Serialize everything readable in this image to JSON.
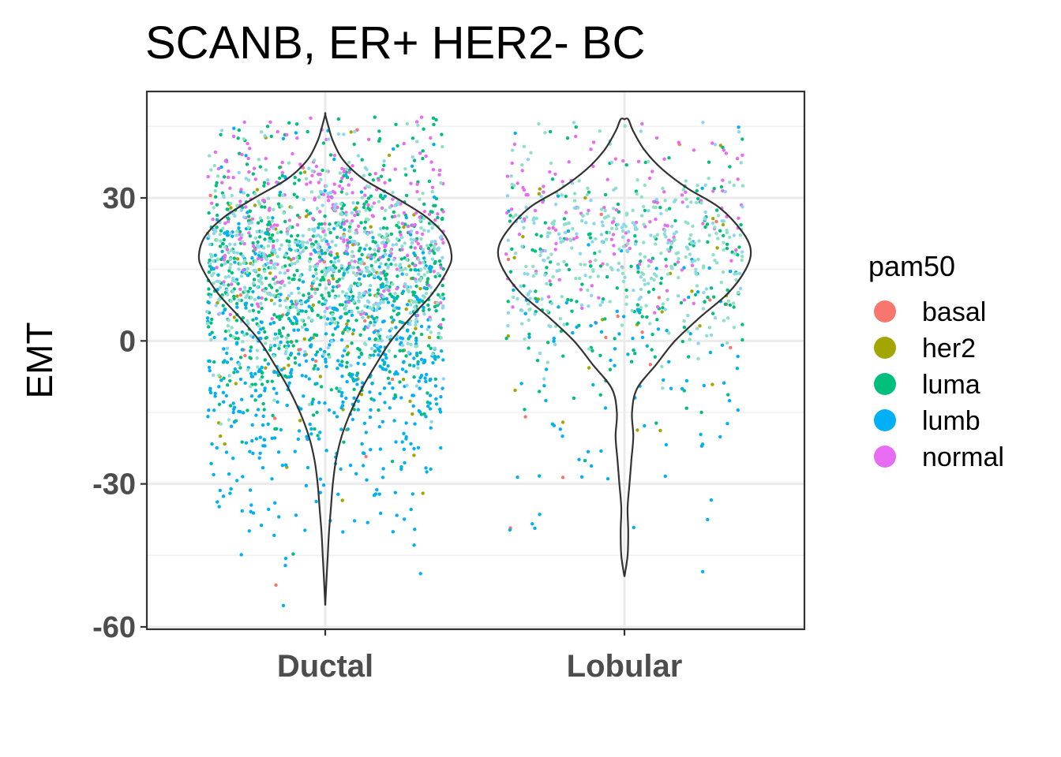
{
  "chart_data": {
    "type": "violin",
    "title": "SCANB, ER+ HER2- BC",
    "xlabel": "",
    "ylabel": "EMT",
    "categories": [
      "Ductal",
      "Lobular"
    ],
    "ylim": [
      -60,
      48
    ],
    "yticks": [
      -60,
      -30,
      0,
      30
    ],
    "grid": true,
    "legend": {
      "title": "pam50",
      "position": "right",
      "entries": [
        {
          "name": "basal",
          "color": "#F8766D"
        },
        {
          "name": "her2",
          "color": "#A3A500"
        },
        {
          "name": "luma",
          "color": "#00BF7D"
        },
        {
          "name": "lumb",
          "color": "#00B0F6"
        },
        {
          "name": "normal",
          "color": "#E76BF3"
        }
      ]
    },
    "violins": [
      {
        "category": "Ductal",
        "ymin": -55.5,
        "ymax": 47.5,
        "profile": [
          {
            "y": -55.5,
            "w": 0.0
          },
          {
            "y": -50,
            "w": 0.01
          },
          {
            "y": -45,
            "w": 0.02
          },
          {
            "y": -40,
            "w": 0.03
          },
          {
            "y": -35,
            "w": 0.045
          },
          {
            "y": -30,
            "w": 0.06
          },
          {
            "y": -25,
            "w": 0.085
          },
          {
            "y": -20,
            "w": 0.13
          },
          {
            "y": -15,
            "w": 0.2
          },
          {
            "y": -10,
            "w": 0.29
          },
          {
            "y": -5,
            "w": 0.4
          },
          {
            "y": 0,
            "w": 0.52
          },
          {
            "y": 5,
            "w": 0.68
          },
          {
            "y": 10,
            "w": 0.85
          },
          {
            "y": 15,
            "w": 0.97
          },
          {
            "y": 18,
            "w": 1.0
          },
          {
            "y": 22,
            "w": 0.95
          },
          {
            "y": 26,
            "w": 0.8
          },
          {
            "y": 30,
            "w": 0.56
          },
          {
            "y": 34,
            "w": 0.3
          },
          {
            "y": 38,
            "w": 0.14
          },
          {
            "y": 42,
            "w": 0.06
          },
          {
            "y": 45,
            "w": 0.025
          },
          {
            "y": 47.5,
            "w": 0.0
          }
        ],
        "halfwidth_fraction": 0.42,
        "points": {
          "n": 2300,
          "composition": {
            "basal": 0.01,
            "her2": 0.04,
            "luma": 0.31,
            "lumb": 0.26,
            "normal": 0.12,
            "luma_light": 0.16,
            "lumb_light": 0.1
          },
          "ymin": -56,
          "ymax": 47
        }
      },
      {
        "category": "Lobular",
        "ymin": -49.5,
        "ymax": 46.5,
        "profile": [
          {
            "y": -49.5,
            "w": 0.0
          },
          {
            "y": -45,
            "w": 0.025
          },
          {
            "y": -40,
            "w": 0.03
          },
          {
            "y": -35,
            "w": 0.025
          },
          {
            "y": -30,
            "w": 0.04
          },
          {
            "y": -25,
            "w": 0.055
          },
          {
            "y": -20,
            "w": 0.07
          },
          {
            "y": -15,
            "w": 0.06
          },
          {
            "y": -10,
            "w": 0.1
          },
          {
            "y": -5,
            "w": 0.25
          },
          {
            "y": 0,
            "w": 0.4
          },
          {
            "y": 5,
            "w": 0.6
          },
          {
            "y": 10,
            "w": 0.82
          },
          {
            "y": 15,
            "w": 0.96
          },
          {
            "y": 19,
            "w": 1.0
          },
          {
            "y": 23,
            "w": 0.93
          },
          {
            "y": 28,
            "w": 0.75
          },
          {
            "y": 32,
            "w": 0.5
          },
          {
            "y": 36,
            "w": 0.3
          },
          {
            "y": 40,
            "w": 0.16
          },
          {
            "y": 44,
            "w": 0.07
          },
          {
            "y": 46.5,
            "w": 0.03
          },
          {
            "y": 46.5,
            "w": 0.0
          }
        ],
        "halfwidth_fraction": 0.45,
        "points": {
          "n": 800,
          "composition": {
            "basal": 0.02,
            "her2": 0.03,
            "luma": 0.22,
            "lumb": 0.12,
            "normal": 0.16,
            "luma_light": 0.3,
            "lumb_light": 0.15
          },
          "ymin": -50,
          "ymax": 46
        }
      }
    ]
  }
}
